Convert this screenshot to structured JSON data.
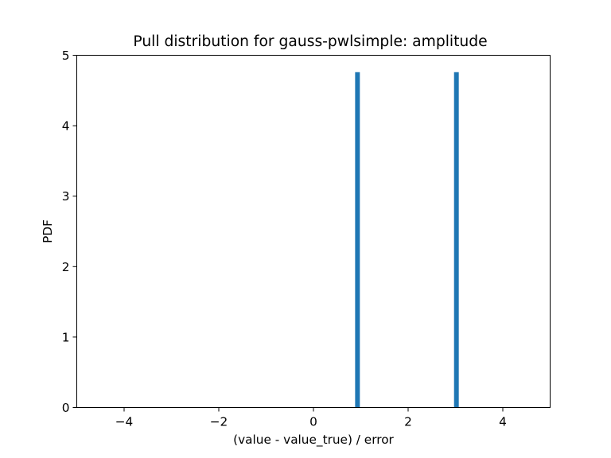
{
  "chart_data": {
    "type": "bar",
    "title": "Pull distribution for gauss-pwlsimple: amplitude",
    "xlabel": "(value - value_true) / error",
    "ylabel": "PDF",
    "xlim": [
      -5,
      5
    ],
    "ylim": [
      0,
      5
    ],
    "xticks": [
      -4,
      -2,
      0,
      2,
      4
    ],
    "xtick_labels": [
      "−4",
      "−2",
      "0",
      "2",
      "4"
    ],
    "yticks": [
      0,
      1,
      2,
      3,
      4,
      5
    ],
    "ytick_labels": [
      "0",
      "1",
      "2",
      "3",
      "4",
      "5"
    ],
    "bins": [
      {
        "x_start": 0.88,
        "x_end": 0.98,
        "value": 4.76
      },
      {
        "x_start": 2.97,
        "x_end": 3.07,
        "value": 4.76
      }
    ],
    "bar_color": "#1f77b4",
    "grid": false,
    "legend": "none"
  }
}
